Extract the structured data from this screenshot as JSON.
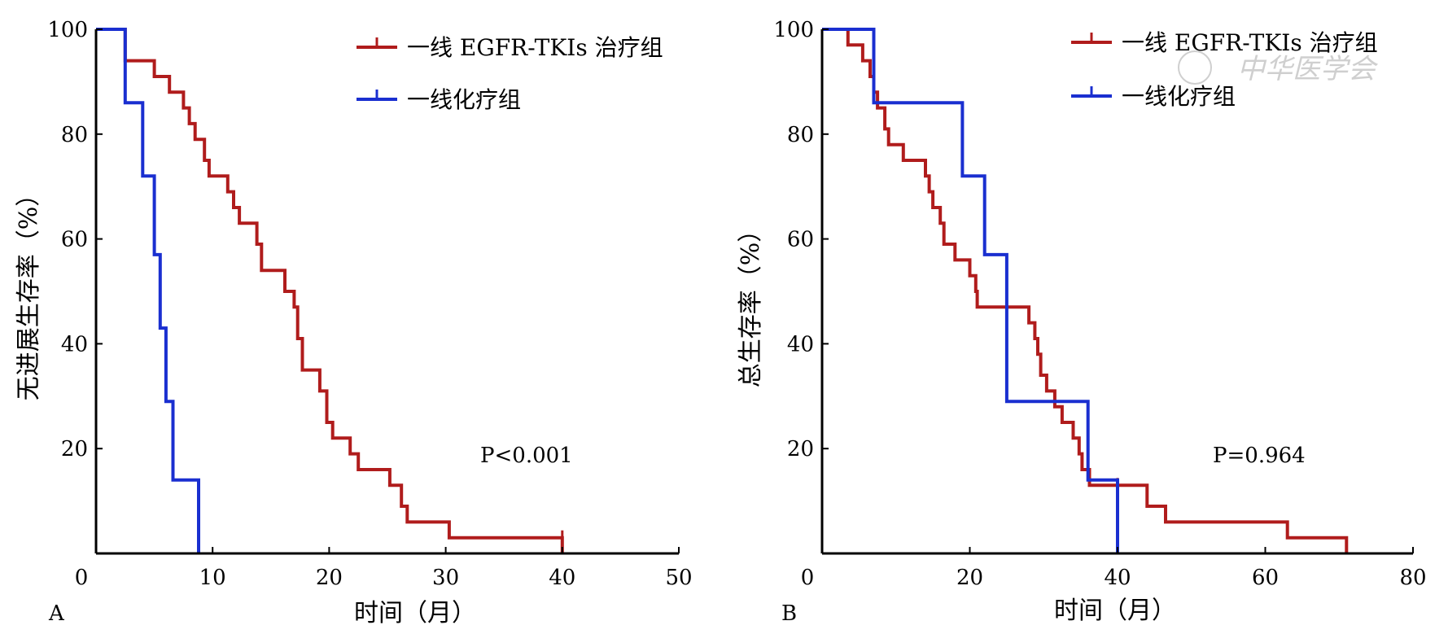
{
  "watermark": "中华医学会",
  "colors": {
    "egfr": "#b01c1c",
    "chemo": "#1a2fd0",
    "axis": "#000000"
  },
  "chart_data": [
    {
      "type": "line",
      "panel": "A",
      "ylabel": "无进展生存率（%）",
      "xlabel": "时间（月）",
      "xlim": [
        0,
        50
      ],
      "ylim": [
        0,
        100
      ],
      "x_ticks": [
        0,
        10,
        20,
        30,
        40,
        50
      ],
      "y_ticks": [
        20,
        40,
        60,
        80,
        100
      ],
      "p_value": "P<0.001",
      "legend_position": "top-right",
      "series": [
        {
          "name": "一线 EGFR-TKIs 治疗组",
          "color_key": "egfr",
          "points": [
            [
              0,
              100
            ],
            [
              2.5,
              100
            ],
            [
              2.5,
              94
            ],
            [
              5,
              94
            ],
            [
              5,
              91
            ],
            [
              6.3,
              91
            ],
            [
              6.3,
              88
            ],
            [
              7.5,
              88
            ],
            [
              7.5,
              85
            ],
            [
              8,
              85
            ],
            [
              8,
              82
            ],
            [
              8.5,
              82
            ],
            [
              8.5,
              79
            ],
            [
              9.3,
              79
            ],
            [
              9.3,
              75
            ],
            [
              9.7,
              75
            ],
            [
              9.7,
              72
            ],
            [
              11.3,
              72
            ],
            [
              11.3,
              69
            ],
            [
              11.8,
              69
            ],
            [
              11.8,
              66
            ],
            [
              12.3,
              66
            ],
            [
              12.3,
              63
            ],
            [
              13.8,
              63
            ],
            [
              13.8,
              59
            ],
            [
              14.2,
              59
            ],
            [
              14.2,
              54
            ],
            [
              16.2,
              54
            ],
            [
              16.2,
              50
            ],
            [
              17,
              50
            ],
            [
              17,
              47
            ],
            [
              17.3,
              47
            ],
            [
              17.3,
              41
            ],
            [
              17.7,
              41
            ],
            [
              17.7,
              35
            ],
            [
              19.2,
              35
            ],
            [
              19.2,
              31
            ],
            [
              19.8,
              31
            ],
            [
              19.8,
              25
            ],
            [
              20.3,
              25
            ],
            [
              20.3,
              22
            ],
            [
              21.8,
              22
            ],
            [
              21.8,
              19
            ],
            [
              22.5,
              19
            ],
            [
              22.5,
              16
            ],
            [
              25.2,
              16
            ],
            [
              25.2,
              13
            ],
            [
              26.2,
              13
            ],
            [
              26.2,
              9
            ],
            [
              26.7,
              9
            ],
            [
              26.7,
              6
            ],
            [
              30.3,
              6
            ],
            [
              30.3,
              3
            ],
            [
              40,
              3
            ],
            [
              40,
              0
            ]
          ],
          "censor_marks": [
            [
              30.3,
              3
            ],
            [
              40,
              3
            ]
          ]
        },
        {
          "name": "一线化疗组",
          "color_key": "chemo",
          "points": [
            [
              0,
              100
            ],
            [
              2.5,
              100
            ],
            [
              2.5,
              86
            ],
            [
              4,
              86
            ],
            [
              4,
              72
            ],
            [
              5,
              72
            ],
            [
              5,
              57
            ],
            [
              5.5,
              57
            ],
            [
              5.5,
              43
            ],
            [
              6,
              43
            ],
            [
              6,
              29
            ],
            [
              6.6,
              29
            ],
            [
              6.6,
              14
            ],
            [
              8.8,
              14
            ],
            [
              8.8,
              0
            ]
          ],
          "censor_marks": []
        }
      ]
    },
    {
      "type": "line",
      "panel": "B",
      "ylabel": "总生存率（%）",
      "xlabel": "时间（月）",
      "xlim": [
        0,
        80
      ],
      "ylim": [
        0,
        100
      ],
      "x_ticks": [
        0,
        20,
        40,
        60,
        80
      ],
      "y_ticks": [
        20,
        40,
        60,
        80,
        100
      ],
      "p_value": "P=0.964",
      "legend_position": "top-right",
      "series": [
        {
          "name": "一线 EGFR-TKIs 治疗组",
          "color_key": "egfr",
          "points": [
            [
              0,
              100
            ],
            [
              3.5,
              100
            ],
            [
              3.5,
              97
            ],
            [
              5.5,
              97
            ],
            [
              5.5,
              94
            ],
            [
              6.5,
              94
            ],
            [
              6.5,
              91
            ],
            [
              7,
              91
            ],
            [
              7,
              88
            ],
            [
              7.5,
              88
            ],
            [
              7.5,
              85
            ],
            [
              8.5,
              85
            ],
            [
              8.5,
              81
            ],
            [
              9,
              81
            ],
            [
              9,
              78
            ],
            [
              11,
              78
            ],
            [
              11,
              75
            ],
            [
              14,
              75
            ],
            [
              14,
              72
            ],
            [
              14.5,
              72
            ],
            [
              14.5,
              69
            ],
            [
              15,
              69
            ],
            [
              15,
              66
            ],
            [
              16,
              66
            ],
            [
              16,
              63
            ],
            [
              16.5,
              63
            ],
            [
              16.5,
              59
            ],
            [
              18,
              59
            ],
            [
              18,
              56
            ],
            [
              20,
              56
            ],
            [
              20,
              53
            ],
            [
              20.8,
              53
            ],
            [
              20.8,
              50
            ],
            [
              21,
              50
            ],
            [
              21,
              47
            ],
            [
              28,
              47
            ],
            [
              28,
              44
            ],
            [
              28.8,
              44
            ],
            [
              28.8,
              41
            ],
            [
              29.2,
              41
            ],
            [
              29.2,
              38
            ],
            [
              29.6,
              38
            ],
            [
              29.6,
              34
            ],
            [
              30.4,
              34
            ],
            [
              30.4,
              31
            ],
            [
              31.5,
              31
            ],
            [
              31.5,
              28
            ],
            [
              32.5,
              28
            ],
            [
              32.5,
              25
            ],
            [
              34,
              25
            ],
            [
              34,
              22
            ],
            [
              34.8,
              22
            ],
            [
              34.8,
              19
            ],
            [
              35.2,
              19
            ],
            [
              35.2,
              16
            ],
            [
              36.2,
              16
            ],
            [
              36.2,
              13
            ],
            [
              44,
              13
            ],
            [
              44,
              9
            ],
            [
              46.5,
              9
            ],
            [
              46.5,
              6
            ],
            [
              63,
              6
            ],
            [
              63,
              3
            ],
            [
              71,
              3
            ],
            [
              71,
              0
            ]
          ],
          "censor_marks": [
            [
              40,
              13
            ],
            [
              63,
              3
            ]
          ]
        },
        {
          "name": "一线化疗组",
          "color_key": "chemo",
          "points": [
            [
              0,
              100
            ],
            [
              7,
              100
            ],
            [
              7,
              86
            ],
            [
              19,
              86
            ],
            [
              19,
              72
            ],
            [
              22,
              72
            ],
            [
              22,
              57
            ],
            [
              25,
              57
            ],
            [
              25,
              29
            ],
            [
              36,
              29
            ],
            [
              36,
              14
            ],
            [
              40,
              14
            ],
            [
              40,
              0
            ]
          ],
          "censor_marks": []
        }
      ]
    }
  ]
}
